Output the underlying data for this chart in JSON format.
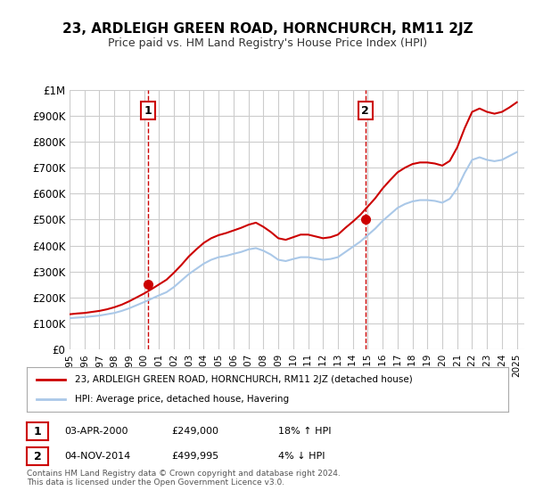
{
  "title": "23, ARDLEIGH GREEN ROAD, HORNCHURCH, RM11 2JZ",
  "subtitle": "Price paid vs. HM Land Registry's House Price Index (HPI)",
  "xlabel": "",
  "ylabel": "",
  "ylim": [
    0,
    1000000
  ],
  "yticks": [
    0,
    100000,
    200000,
    300000,
    400000,
    500000,
    600000,
    700000,
    800000,
    900000,
    1000000
  ],
  "ytick_labels": [
    "£0",
    "£100K",
    "£200K",
    "£300K",
    "£400K",
    "£500K",
    "£600K",
    "£700K",
    "£800K",
    "£900K",
    "£1M"
  ],
  "background_color": "#ffffff",
  "grid_color": "#cccccc",
  "sale1_date": 2000.25,
  "sale1_price": 249000,
  "sale1_label": "1",
  "sale1_text": "03-APR-2000    £249,000    18% ↑ HPI",
  "sale2_date": 2014.84,
  "sale2_price": 499995,
  "sale2_label": "2",
  "sale2_text": "04-NOV-2014    £499,995    4% ↓ HPI",
  "vline_color": "#cc0000",
  "vline_style": "--",
  "dot_color": "#cc0000",
  "line1_color": "#cc0000",
  "line2_color": "#aac8e8",
  "legend_line1": "23, ARDLEIGH GREEN ROAD, HORNCHURCH, RM11 2JZ (detached house)",
  "legend_line2": "HPI: Average price, detached house, Havering",
  "footer": "Contains HM Land Registry data © Crown copyright and database right 2024.\nThis data is licensed under the Open Government Licence v3.0.",
  "hpi_years": [
    1995,
    1995.5,
    1996,
    1996.5,
    1997,
    1997.5,
    1998,
    1998.5,
    1999,
    1999.5,
    2000,
    2000.5,
    2001,
    2001.5,
    2002,
    2002.5,
    2003,
    2003.5,
    2004,
    2004.5,
    2005,
    2005.5,
    2006,
    2006.5,
    2007,
    2007.5,
    2008,
    2008.5,
    2009,
    2009.5,
    2010,
    2010.5,
    2011,
    2011.5,
    2012,
    2012.5,
    2013,
    2013.5,
    2014,
    2014.5,
    2015,
    2015.5,
    2016,
    2016.5,
    2017,
    2017.5,
    2018,
    2018.5,
    2019,
    2019.5,
    2020,
    2020.5,
    2021,
    2021.5,
    2022,
    2022.5,
    2023,
    2023.5,
    2024,
    2024.5,
    2025
  ],
  "hpi_values": [
    120000,
    122000,
    124000,
    127000,
    130000,
    135000,
    140000,
    148000,
    158000,
    170000,
    182000,
    195000,
    208000,
    220000,
    240000,
    265000,
    290000,
    310000,
    330000,
    345000,
    355000,
    360000,
    368000,
    375000,
    385000,
    390000,
    380000,
    365000,
    345000,
    340000,
    348000,
    355000,
    355000,
    350000,
    345000,
    348000,
    355000,
    375000,
    395000,
    415000,
    440000,
    465000,
    495000,
    520000,
    545000,
    560000,
    570000,
    575000,
    575000,
    572000,
    565000,
    580000,
    620000,
    680000,
    730000,
    740000,
    730000,
    725000,
    730000,
    745000,
    760000
  ],
  "red_years": [
    1995,
    1995.5,
    1996,
    1996.5,
    1997,
    1997.5,
    1998,
    1998.5,
    1999,
    1999.5,
    2000,
    2000.5,
    2001,
    2001.5,
    2002,
    2002.5,
    2003,
    2003.5,
    2004,
    2004.5,
    2005,
    2005.5,
    2006,
    2006.5,
    2007,
    2007.5,
    2008,
    2008.5,
    2009,
    2009.5,
    2010,
    2010.5,
    2011,
    2011.5,
    2012,
    2012.5,
    2013,
    2013.5,
    2014,
    2014.5,
    2015,
    2015.5,
    2016,
    2016.5,
    2017,
    2017.5,
    2018,
    2018.5,
    2019,
    2019.5,
    2020,
    2020.5,
    2021,
    2021.5,
    2022,
    2022.5,
    2023,
    2023.5,
    2024,
    2024.5,
    2025
  ],
  "red_values": [
    135000,
    138000,
    140000,
    144000,
    148000,
    154000,
    162000,
    172000,
    185000,
    200000,
    215000,
    232000,
    250000,
    268000,
    295000,
    325000,
    358000,
    385000,
    410000,
    428000,
    440000,
    448000,
    458000,
    468000,
    480000,
    488000,
    472000,
    452000,
    428000,
    422000,
    432000,
    442000,
    442000,
    435000,
    428000,
    432000,
    442000,
    468000,
    492000,
    518000,
    550000,
    582000,
    620000,
    652000,
    682000,
    700000,
    714000,
    720000,
    720000,
    716000,
    708000,
    726000,
    778000,
    852000,
    915000,
    928000,
    915000,
    908000,
    915000,
    932000,
    952000
  ],
  "xtick_years": [
    1995,
    1996,
    1997,
    1998,
    1999,
    2000,
    2001,
    2002,
    2003,
    2004,
    2005,
    2006,
    2007,
    2008,
    2009,
    2010,
    2011,
    2012,
    2013,
    2014,
    2015,
    2016,
    2017,
    2018,
    2019,
    2020,
    2021,
    2022,
    2023,
    2024,
    2025
  ]
}
